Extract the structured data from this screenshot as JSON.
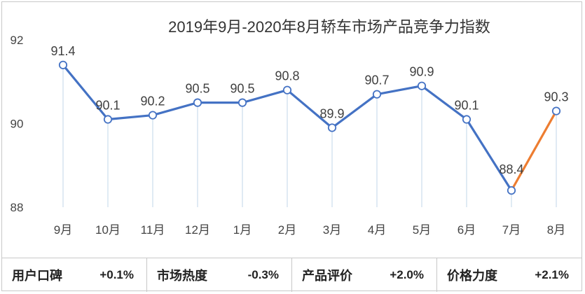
{
  "chart_data": {
    "type": "line",
    "title": "2019年9月-2020年8月轿车市场产品竞争力指数",
    "categories": [
      "9月",
      "10月",
      "11月",
      "12月",
      "1月",
      "2月",
      "3月",
      "4月",
      "5月",
      "6月",
      "7月",
      "8月"
    ],
    "values": [
      91.4,
      90.1,
      90.2,
      90.5,
      90.5,
      90.8,
      89.9,
      90.7,
      90.9,
      90.1,
      88.4,
      90.3
    ],
    "data_labels": [
      "91.4",
      "90.1",
      "90.2",
      "90.5",
      "90.5",
      "90.8",
      "89.9",
      "90.7",
      "90.9",
      "90.1",
      "88.4",
      "90.3"
    ],
    "y_ticks": [
      "88",
      "90",
      "92"
    ],
    "ylim": [
      88,
      92
    ],
    "xlabel": "",
    "ylabel": "",
    "grid": false,
    "colors": {
      "line": "#4472C4",
      "highlight_segment": "#ED7D31",
      "drop_line": "#D6E4F0"
    }
  },
  "footer": {
    "metrics": [
      {
        "label": "用户口碑",
        "value": "+0.1%"
      },
      {
        "label": "市场热度",
        "value": "-0.3%"
      },
      {
        "label": "产品评价",
        "value": "+2.0%"
      },
      {
        "label": "价格力度",
        "value": "+2.1%"
      }
    ]
  }
}
